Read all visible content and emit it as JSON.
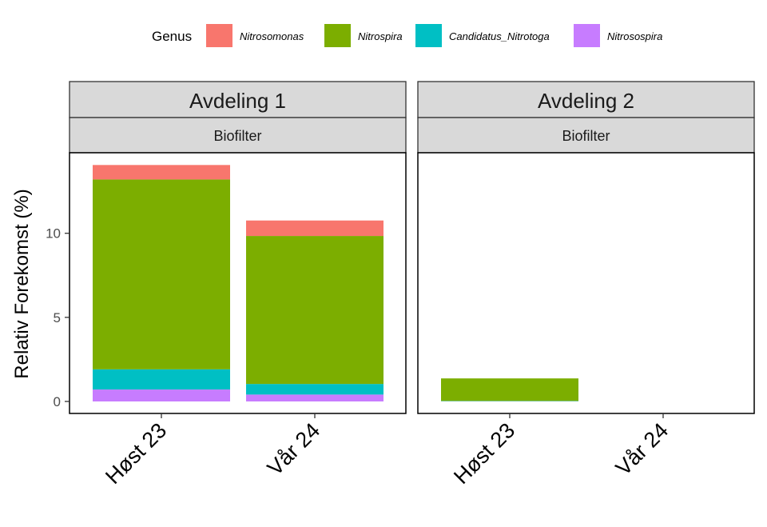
{
  "chart_data": {
    "type": "bar",
    "stacked": true,
    "ylabel": "Relativ Forekomst (%)",
    "ylim": [
      0,
      14.8
    ],
    "yticks": [
      0,
      5,
      10
    ],
    "grid": false,
    "legend": {
      "title": "Genus",
      "placement": "top",
      "entries": [
        {
          "name": "Nitrosomonas",
          "color": "#F8766D"
        },
        {
          "name": "Nitrospira",
          "color": "#7CAE00"
        },
        {
          "name": "Candidatus_Nitrotoga",
          "color": "#00BFC4"
        },
        {
          "name": "Nitrosospira",
          "color": "#C77CFF"
        }
      ]
    },
    "categories": [
      "Høst 23",
      "Vår 24"
    ],
    "stack_order_bottom_to_top": [
      "Nitrosospira",
      "Candidatus_Nitrotoga",
      "Nitrospira",
      "Nitrosomonas"
    ],
    "panels": [
      {
        "title": "Avdeling 1",
        "subtitle": "Biofilter",
        "series": [
          {
            "name": "Nitrosospira",
            "values": [
              0.71,
              0.41
            ]
          },
          {
            "name": "Candidatus_Nitrotoga",
            "values": [
              1.2,
              0.63
            ]
          },
          {
            "name": "Nitrospira",
            "values": [
              11.29,
              8.8
            ]
          },
          {
            "name": "Nitrosomonas",
            "values": [
              0.86,
              0.92
            ]
          }
        ]
      },
      {
        "title": "Avdeling 2",
        "subtitle": "Biofilter",
        "series": [
          {
            "name": "Nitrosospira",
            "values": [
              0.01,
              0
            ]
          },
          {
            "name": "Candidatus_Nitrotoga",
            "values": [
              0.02,
              0
            ]
          },
          {
            "name": "Nitrospira",
            "values": [
              1.34,
              0
            ]
          },
          {
            "name": "Nitrosomonas",
            "values": [
              0,
              0
            ]
          }
        ]
      }
    ]
  }
}
